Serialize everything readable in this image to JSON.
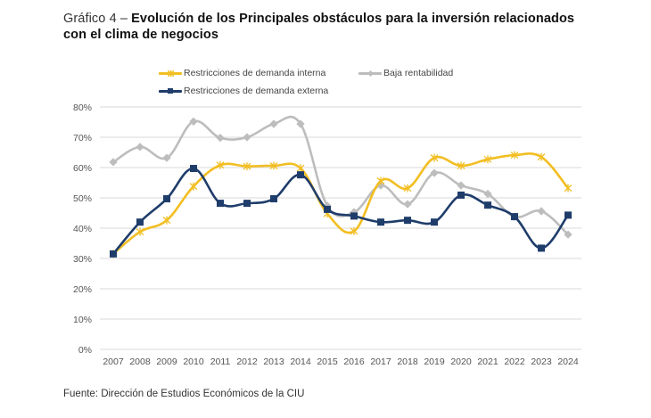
{
  "title": {
    "lead": "Gráfico 4 – ",
    "main": "Evolución de los Principales obstáculos para la inversión relacionados con el clima de negocios"
  },
  "source": "Fuente: Dirección de Estudios Económicos de la CIU",
  "chart_data": {
    "type": "line",
    "title": "Evolución de los Principales obstáculos para la inversión relacionados con el clima de negocios",
    "xlabel": "",
    "ylabel": "",
    "ylim": [
      0,
      80
    ],
    "y_ticks": [
      "0%",
      "10%",
      "20%",
      "30%",
      "40%",
      "50%",
      "60%",
      "70%",
      "80%"
    ],
    "y_tick_values": [
      0,
      10,
      20,
      30,
      40,
      50,
      60,
      70,
      80
    ],
    "grid": true,
    "legend_position": "top",
    "x": [
      "2007",
      "2008",
      "2009",
      "2010",
      "2011",
      "2012",
      "2013",
      "2014",
      "2015",
      "2016",
      "2017",
      "2018",
      "2019",
      "2020",
      "2021",
      "2022",
      "2023",
      "2024"
    ],
    "series": [
      {
        "name": "Restricciones de demanda interna",
        "color": "#F2BE22",
        "marker": "asterisk",
        "values": [
          31.5,
          38.8,
          42.6,
          53.8,
          60.8,
          60.4,
          60.6,
          59.8,
          44.8,
          39.0,
          55.6,
          53.2,
          63.2,
          60.6,
          62.7,
          64.1,
          63.5,
          53.2
        ]
      },
      {
        "name": "Baja rentabilidad",
        "color": "#BDBDBD",
        "marker": "diamond",
        "values": [
          61.8,
          66.8,
          63.2,
          75.2,
          69.8,
          70.0,
          74.4,
          74.4,
          47.4,
          45.3,
          54.1,
          47.9,
          58.2,
          54.1,
          51.3,
          43.8,
          45.6,
          37.9
        ]
      },
      {
        "name": "Restricciones de demanda externa",
        "color": "#1F3D6B",
        "marker": "square",
        "values": [
          31.5,
          42.0,
          49.7,
          59.7,
          48.2,
          48.2,
          49.7,
          57.6,
          46.2,
          44.0,
          42.0,
          42.6,
          42.0,
          50.9,
          47.6,
          43.8,
          33.4,
          44.3
        ]
      }
    ]
  }
}
